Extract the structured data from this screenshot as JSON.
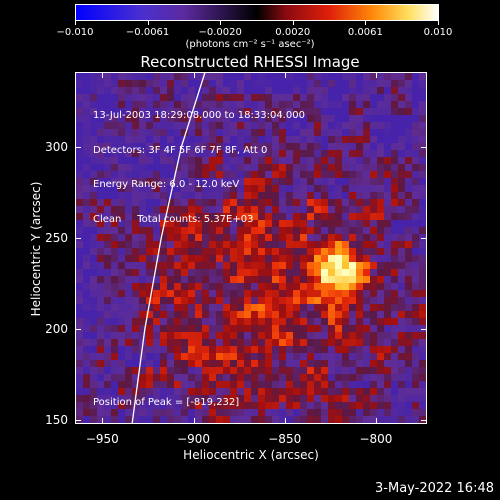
{
  "colorbar": {
    "ticks": [
      "−0.010",
      "−0.0061",
      "−0.0020",
      "0.0020",
      "0.0061",
      "0.010"
    ],
    "unit_label": "(photons cm⁻² s⁻¹ asec⁻²)"
  },
  "info": {
    "time_range": "13-Jul-2003 18:29:08.000 to 18:33:04.000",
    "detectors": "Detectors: 3F 4F 5F 6F 7F 8F, Att 0",
    "energy": "Energy Range: 6.0 - 12.0 keV",
    "clean": "Clean     Total counts: 5.37E+03"
  },
  "peak_label": "Position of Peak = [-819,232]",
  "timestamp": "3-May-2022 16:48",
  "chart_data": {
    "type": "heatmap",
    "title": "Reconstructed RHESSI Image",
    "xlabel": "Heliocentric X (arcsec)",
    "ylabel": "Heliocentric Y (arcsec)",
    "xlim": [
      -965,
      -772
    ],
    "ylim": [
      148,
      341
    ],
    "x_ticks": [
      -950,
      -900,
      -850,
      -800
    ],
    "y_ticks": [
      150,
      200,
      250,
      300
    ],
    "x_tick_labels": [
      "−950",
      "−900",
      "−850",
      "−800"
    ],
    "y_tick_labels": [
      "150",
      "200",
      "250",
      "300"
    ],
    "colorbar_range": [
      -0.01,
      0.01
    ],
    "peak": [
      -819,
      232
    ],
    "limb_points": [
      [
        -934,
        148
      ],
      [
        -927,
        200
      ],
      [
        -918,
        250
      ],
      [
        -907,
        300
      ],
      [
        -894,
        341
      ]
    ],
    "colors": {
      "bar_low": "#0000ff",
      "bar_mid": "#000000",
      "bar_high": "#ffffff",
      "background": "#5a2a9a"
    }
  }
}
